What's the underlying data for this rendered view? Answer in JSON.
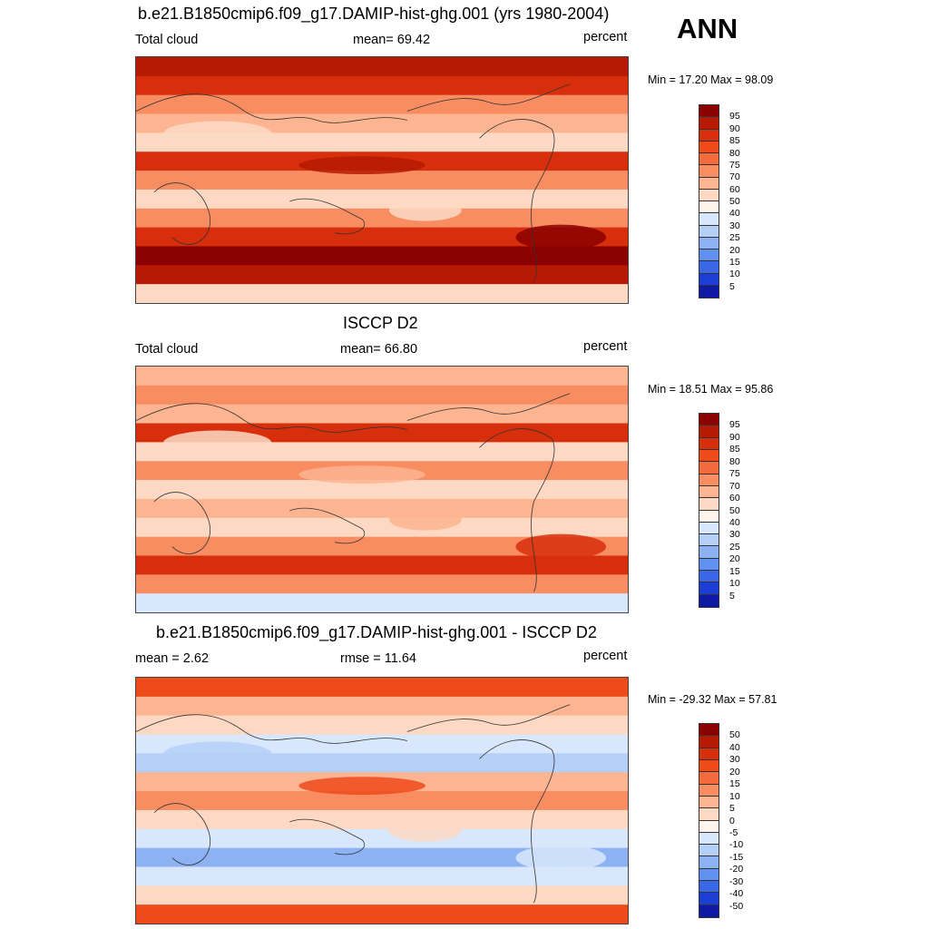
{
  "season": "ANN",
  "panels": [
    {
      "title": "b.e21.B1850cmip6.f09_g17.DAMIP-hist-ghg.001 (yrs 1980-2004)",
      "left_label": "Total cloud",
      "center_label": "mean=  69.42",
      "right_label": "percent",
      "minmax": "Min =  17.20 Max =  98.09",
      "colorbar": {
        "labels": [
          "95",
          "90",
          "85",
          "80",
          "75",
          "70",
          "60",
          "50",
          "40",
          "30",
          "25",
          "20",
          "15",
          "10",
          "5"
        ],
        "colors": [
          "#8b0000",
          "#b61a04",
          "#d72e0c",
          "#ee4a1a",
          "#f56a3c",
          "#f98d62",
          "#fcb491",
          "#fdd9c4",
          "#fff5ec",
          "#d8e7fb",
          "#b4cff8",
          "#8db2f3",
          "#6090f0",
          "#3a66e8",
          "#1a3ed6",
          "#0e1aa4"
        ]
      },
      "map_bands": [
        "#b61a04",
        "#d72e0c",
        "#f98d62",
        "#fcb491",
        "#fdd9c4",
        "#d72e0c",
        "#f98d62",
        "#fdd9c4",
        "#f98d62",
        "#d72e0c",
        "#8b0000",
        "#b61a04",
        "#fdd9c4"
      ]
    },
    {
      "title": "ISCCP D2",
      "left_label": "Total cloud",
      "center_label": "mean=  66.80",
      "right_label": "percent",
      "minmax": "Min =  18.51 Max =  95.86",
      "colorbar": {
        "labels": [
          "95",
          "90",
          "85",
          "80",
          "75",
          "70",
          "60",
          "50",
          "40",
          "30",
          "25",
          "20",
          "15",
          "10",
          "5"
        ],
        "colors": [
          "#8b0000",
          "#b61a04",
          "#d72e0c",
          "#ee4a1a",
          "#f56a3c",
          "#f98d62",
          "#fcb491",
          "#fdd9c4",
          "#fff5ec",
          "#d8e7fb",
          "#b4cff8",
          "#8db2f3",
          "#6090f0",
          "#3a66e8",
          "#1a3ed6",
          "#0e1aa4"
        ]
      },
      "map_bands": [
        "#fcb491",
        "#f98d62",
        "#fcb491",
        "#d72e0c",
        "#fdd9c4",
        "#f98d62",
        "#fdd9c4",
        "#fcb491",
        "#fdd9c4",
        "#f98d62",
        "#d72e0c",
        "#f98d62",
        "#d8e7fb"
      ]
    },
    {
      "title": "b.e21.B1850cmip6.f09_g17.DAMIP-hist-ghg.001 - ISCCP D2",
      "left_label": "mean =   2.62",
      "center_label": "rmse =  11.64",
      "right_label": "percent",
      "minmax": "Min = -29.32 Max =  57.81",
      "colorbar": {
        "labels": [
          "50",
          "40",
          "30",
          "20",
          "15",
          "10",
          "5",
          "0",
          "-5",
          "-10",
          "-15",
          "-20",
          "-30",
          "-40",
          "-50"
        ],
        "colors": [
          "#8b0000",
          "#b61a04",
          "#d72e0c",
          "#ee4a1a",
          "#f56a3c",
          "#f98d62",
          "#fcb491",
          "#fdd9c4",
          "#fff5ec",
          "#d8e7fb",
          "#b4cff8",
          "#8db2f3",
          "#6090f0",
          "#3a66e8",
          "#1a3ed6",
          "#0e1aa4"
        ]
      },
      "map_bands": [
        "#ee4a1a",
        "#fcb491",
        "#fdd9c4",
        "#d8e7fb",
        "#b4cff8",
        "#fcb491",
        "#f98d62",
        "#fdd9c4",
        "#d8e7fb",
        "#8db2f3",
        "#d8e7fb",
        "#fdd9c4",
        "#ee4a1a"
      ]
    }
  ]
}
